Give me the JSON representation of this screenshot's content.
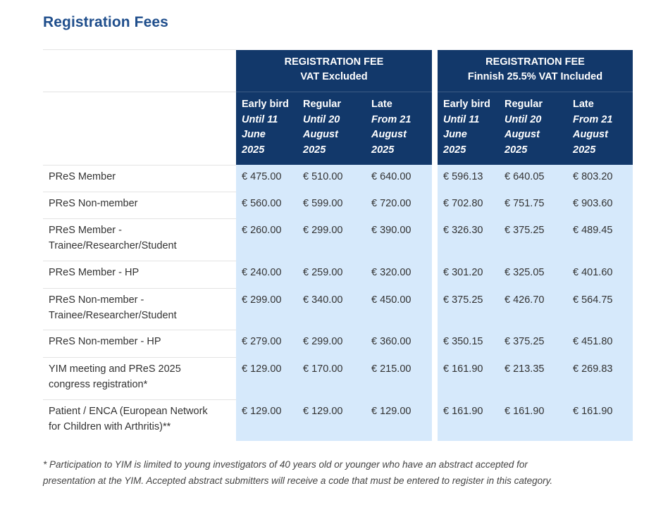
{
  "page": {
    "title": "Registration Fees"
  },
  "groups": [
    {
      "line1": "REGISTRATION FEE",
      "line2": "VAT Excluded"
    },
    {
      "line1": "REGISTRATION FEE",
      "line2": "Finnish 25.5% VAT Included"
    }
  ],
  "subheaders": [
    {
      "label": "Early bird",
      "lines": [
        "Until 11",
        "June",
        "2025"
      ]
    },
    {
      "label": "Regular",
      "lines": [
        "Until 20",
        "August",
        "2025"
      ]
    },
    {
      "label": "Late",
      "lines": [
        "From 21",
        "August",
        "2025"
      ]
    }
  ],
  "rows": [
    {
      "label": [
        "PReS Member"
      ],
      "values": [
        "€ 475.00",
        "€ 510.00",
        "€ 640.00",
        "€ 596.13",
        "€ 640.05",
        "€ 803.20"
      ]
    },
    {
      "label": [
        "PReS Non-member"
      ],
      "values": [
        "€ 560.00",
        "€ 599.00",
        "€ 720.00",
        "€ 702.80",
        "€ 751.75",
        "€ 903.60"
      ]
    },
    {
      "label": [
        "PReS Member -",
        "Trainee/Researcher/Student"
      ],
      "values": [
        "€ 260.00",
        "€ 299.00",
        "€ 390.00",
        "€ 326.30",
        "€ 375.25",
        "€ 489.45"
      ]
    },
    {
      "label": [
        "PReS Member - HP"
      ],
      "values": [
        "€ 240.00",
        "€ 259.00",
        "€ 320.00",
        "€ 301.20",
        "€ 325.05",
        "€ 401.60"
      ]
    },
    {
      "label": [
        "PReS Non-member -",
        "Trainee/Researcher/Student"
      ],
      "values": [
        "€ 299.00",
        "€ 340.00",
        "€ 450.00",
        "€ 375.25",
        "€ 426.70",
        "€ 564.75"
      ]
    },
    {
      "label": [
        "PReS Non-member - HP"
      ],
      "values": [
        "€ 279.00",
        "€ 299.00",
        "€ 360.00",
        "€ 350.15",
        "€ 375.25",
        "€ 451.80"
      ]
    },
    {
      "label": [
        "YIM meeting and PReS 2025",
        "congress registration*"
      ],
      "values": [
        "€ 129.00",
        "€ 170.00",
        "€ 215.00",
        "€ 161.90",
        "€ 213.35",
        "€ 269.83"
      ]
    },
    {
      "label": [
        "Patient / ENCA (European Network",
        "for Children with Arthritis)**"
      ],
      "values": [
        "€ 129.00",
        "€ 129.00",
        "€ 129.00",
        "€ 161.90",
        "€ 161.90",
        "€ 161.90"
      ]
    }
  ],
  "footnote": {
    "line1": "* Participation to YIM is limited to young investigators of 40 years old or younger who have an abstract accepted for",
    "line2": "presentation at the YIM.  Accepted abstract submitters will receive a code that must be entered to register in this category."
  }
}
